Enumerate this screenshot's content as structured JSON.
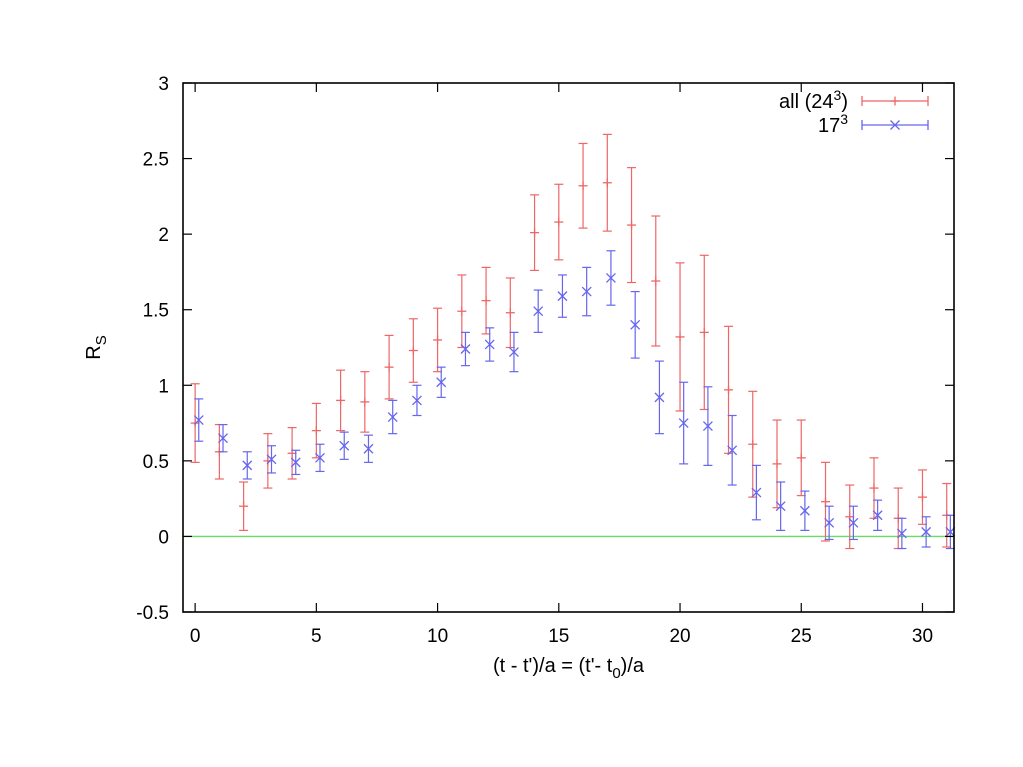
{
  "chart_data": {
    "type": "scatter",
    "title": "",
    "xlabel": {
      "text": "(t - t')/a = (t'- t",
      "sub": "0",
      "tail": ")/a"
    },
    "ylabel": {
      "text": "R",
      "sub": "S"
    },
    "xlim": [
      -0.5,
      31.3
    ],
    "ylim": [
      -0.5,
      3
    ],
    "xticks": [
      0,
      5,
      10,
      15,
      20,
      25,
      30
    ],
    "yticks": [
      -0.5,
      0,
      0.5,
      1,
      1.5,
      2,
      2.5,
      3
    ],
    "xtick_labels": [
      "0",
      "5",
      "10",
      "15",
      "20",
      "25",
      "30"
    ],
    "ytick_labels": [
      "-0.5",
      "0",
      "0.5",
      "1",
      "1.5",
      "2",
      "2.5",
      "3"
    ],
    "grid": false,
    "legend_position": "top-right",
    "reference_line": {
      "y": 0,
      "color": "#66dd66"
    },
    "series": [
      {
        "name": "all (24",
        "name_sup": "3",
        "name_tail": ")",
        "color": "#ee6666",
        "marker": "plus",
        "x": [
          0,
          1,
          2,
          3,
          4,
          5,
          6,
          7,
          8,
          9,
          10,
          11,
          12,
          13,
          14,
          15,
          16,
          17,
          18,
          19,
          20,
          21,
          22,
          23,
          24,
          25,
          26,
          27,
          28,
          29,
          30,
          31
        ],
        "y": [
          0.75,
          0.56,
          0.2,
          0.5,
          0.55,
          0.7,
          0.9,
          0.89,
          1.12,
          1.23,
          1.3,
          1.49,
          1.56,
          1.48,
          2.01,
          2.08,
          2.32,
          2.34,
          2.06,
          1.69,
          1.32,
          1.35,
          0.97,
          0.61,
          0.48,
          0.52,
          0.23,
          0.13,
          0.32,
          0.12,
          0.26,
          0.14
        ],
        "err": [
          0.26,
          0.18,
          0.16,
          0.18,
          0.17,
          0.18,
          0.2,
          0.2,
          0.21,
          0.21,
          0.21,
          0.24,
          0.22,
          0.23,
          0.25,
          0.25,
          0.28,
          0.32,
          0.38,
          0.43,
          0.49,
          0.51,
          0.42,
          0.35,
          0.29,
          0.25,
          0.26,
          0.21,
          0.2,
          0.2,
          0.18,
          0.21
        ]
      },
      {
        "name": "17",
        "name_sup": "3",
        "name_tail": "",
        "color": "#6666ee",
        "marker": "cross",
        "x": [
          0.15,
          1.15,
          2.15,
          3.15,
          4.15,
          5.15,
          6.15,
          7.15,
          8.15,
          9.15,
          10.15,
          11.15,
          12.15,
          13.15,
          14.15,
          15.15,
          16.15,
          17.15,
          18.15,
          19.15,
          20.15,
          21.15,
          22.15,
          23.15,
          24.15,
          25.15,
          26.15,
          27.15,
          28.15,
          29.15,
          30.15,
          31.15
        ],
        "y": [
          0.77,
          0.65,
          0.47,
          0.51,
          0.49,
          0.52,
          0.6,
          0.58,
          0.79,
          0.9,
          1.02,
          1.24,
          1.27,
          1.22,
          1.49,
          1.59,
          1.62,
          1.71,
          1.4,
          0.92,
          0.75,
          0.73,
          0.57,
          0.29,
          0.2,
          0.17,
          0.09,
          0.09,
          0.14,
          0.02,
          0.03,
          0.03
        ],
        "err": [
          0.14,
          0.09,
          0.09,
          0.09,
          0.08,
          0.09,
          0.09,
          0.09,
          0.11,
          0.1,
          0.1,
          0.11,
          0.11,
          0.13,
          0.14,
          0.14,
          0.16,
          0.18,
          0.22,
          0.24,
          0.27,
          0.26,
          0.23,
          0.18,
          0.16,
          0.13,
          0.11,
          0.11,
          0.1,
          0.1,
          0.1,
          0.11
        ]
      }
    ]
  }
}
